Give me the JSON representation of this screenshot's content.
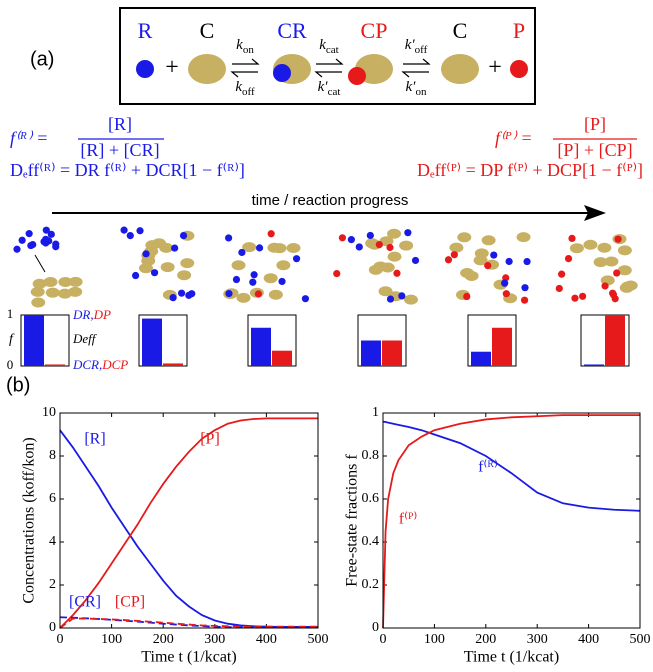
{
  "panel_labels": [
    "(a)",
    "(b)"
  ],
  "scheme": {
    "species": [
      {
        "label": "R",
        "color": "#1a1ae6"
      },
      {
        "label": "C",
        "color": "#000000"
      },
      {
        "label": "CR",
        "color": "#1a1ae6"
      },
      {
        "label": "CP",
        "color": "#e61a1a"
      },
      {
        "label": "C",
        "color": "#000000"
      },
      {
        "label": "P",
        "color": "#e61a1a"
      }
    ],
    "rates": [
      {
        "forward": {
          "base": "k",
          "sub": "on"
        },
        "backward": {
          "base": "k",
          "sub": "off"
        }
      },
      {
        "forward": {
          "base": "k",
          "sub": "cat"
        },
        "backward": {
          "base": "k′",
          "sub": "cat"
        }
      },
      {
        "forward": {
          "base": "k′",
          "sub": "off"
        },
        "backward": {
          "base": "k′",
          "sub": "on"
        }
      }
    ]
  },
  "formulas": {
    "left": {
      "lhs": "f⁽ᴿ⁾ =",
      "numerator": "[R]",
      "denominator": "[R] + [CR]",
      "diffusion": "Dₑff⁽ᴿ⁾ = DR f⁽ᴿ⁾ + DCR[1 − f⁽ᴿ⁾]"
    },
    "right": {
      "lhs": "f⁽ᴾ⁾ =",
      "numerator": "[P]",
      "denominator": "[P] + [CP]",
      "diffusion": "Dₑff⁽ᴾ⁾ = DP f⁽ᴾ⁾ + DCP[1 − f⁽ᴾ⁾]"
    }
  },
  "progress_label": "time / reaction progress",
  "chart_data": [
    {
      "type": "bar",
      "categories": [
        null,
        null,
        null,
        null,
        null,
        null
      ],
      "series": [
        {
          "color": "#1a1ae6",
          "values": [
            1.0,
            0.93,
            0.75,
            0.5,
            0.28,
            0.03
          ]
        },
        {
          "color": "#e61a1a",
          "values": [
            0.03,
            0.05,
            0.3,
            0.5,
            0.75,
            1.0
          ]
        }
      ],
      "ylim": [
        0,
        1
      ],
      "yticks": [
        0,
        1
      ],
      "ylabel": "f",
      "annotations": {
        "top": [
          "DR,",
          "DP"
        ],
        "middle": "Deff",
        "bottom": [
          "DCR,",
          "DCP"
        ]
      }
    },
    {
      "type": "line",
      "xlabel": "Time t (1/kcat)",
      "ylabel": "Concentrations (koff/kon)",
      "x": [
        0,
        25,
        50,
        75,
        100,
        125,
        150,
        175,
        200,
        225,
        250,
        275,
        300,
        325,
        350,
        375,
        400,
        425,
        450,
        475,
        500
      ],
      "series": [
        {
          "name": "[R]",
          "color": "#1a1ae6",
          "dashed": false,
          "values": [
            9.2,
            8.4,
            7.5,
            6.6,
            5.6,
            4.7,
            3.8,
            3.0,
            2.2,
            1.5,
            1.0,
            0.6,
            0.35,
            0.2,
            0.12,
            0.08,
            0.06,
            0.05,
            0.05,
            0.05,
            0.05
          ]
        },
        {
          "name": "[P]",
          "color": "#e61a1a",
          "dashed": false,
          "values": [
            0,
            0.6,
            1.3,
            2.1,
            3.0,
            3.9,
            4.8,
            5.8,
            6.7,
            7.5,
            8.2,
            8.8,
            9.2,
            9.5,
            9.65,
            9.72,
            9.75,
            9.75,
            9.75,
            9.75,
            9.75
          ]
        },
        {
          "name": "[CR]",
          "color": "#1a1ae6",
          "dashed": true,
          "values": [
            0.5,
            0.48,
            0.45,
            0.42,
            0.38,
            0.34,
            0.3,
            0.25,
            0.2,
            0.16,
            0.12,
            0.09,
            0.06,
            0.04,
            0.03,
            0.02,
            0.02,
            0.02,
            0.02,
            0.02,
            0.02
          ]
        },
        {
          "name": "[CP]",
          "color": "#e61a1a",
          "dashed": true,
          "values": [
            0,
            0.44,
            0.44,
            0.42,
            0.4,
            0.37,
            0.33,
            0.29,
            0.25,
            0.2,
            0.16,
            0.12,
            0.1,
            0.08,
            0.07,
            0.06,
            0.06,
            0.06,
            0.06,
            0.06,
            0.06
          ]
        }
      ],
      "xlim": [
        0,
        500
      ],
      "xticks": [
        0,
        100,
        200,
        300,
        400,
        500
      ],
      "ylim": [
        0,
        10
      ],
      "yticks": [
        0,
        2,
        4,
        6,
        8,
        10
      ]
    },
    {
      "type": "line",
      "xlabel": "Time t (1/kcat)",
      "ylabel": "Free-state fractions f",
      "x": [
        0,
        5,
        10,
        20,
        30,
        50,
        75,
        100,
        150,
        200,
        250,
        300,
        350,
        400,
        450,
        500
      ],
      "series": [
        {
          "name": "f⁽ᴿ⁾",
          "color": "#1a1ae6",
          "dashed": false,
          "values": [
            0.96,
            0.958,
            0.955,
            0.95,
            0.945,
            0.935,
            0.92,
            0.9,
            0.86,
            0.8,
            0.72,
            0.63,
            0.58,
            0.56,
            0.55,
            0.545
          ]
        },
        {
          "name": "f⁽ᴾ⁾",
          "color": "#e61a1a",
          "dashed": false,
          "values": [
            0,
            0.45,
            0.6,
            0.72,
            0.78,
            0.85,
            0.89,
            0.92,
            0.95,
            0.97,
            0.98,
            0.985,
            0.99,
            0.99,
            0.99,
            0.99
          ]
        }
      ],
      "xlim": [
        0,
        500
      ],
      "xticks": [
        0,
        100,
        200,
        300,
        400,
        500
      ],
      "ylim": [
        0,
        1
      ],
      "yticks": [
        0,
        0.2,
        0.4,
        0.6,
        0.8,
        1
      ]
    }
  ]
}
